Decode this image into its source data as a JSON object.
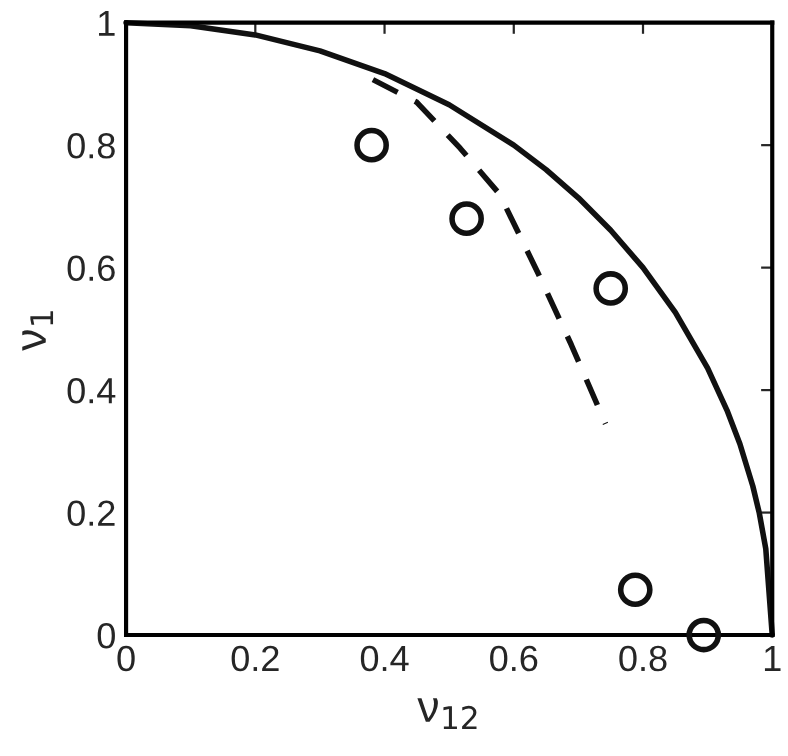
{
  "chart_data": {
    "type": "line",
    "xlabel": "ν$_{12}$",
    "ylabel": "ν$_{1}$",
    "xlim": [
      0,
      1
    ],
    "ylim": [
      0,
      1
    ],
    "xticks": [
      0,
      0.2,
      0.4,
      0.6,
      0.8,
      1
    ],
    "yticks": [
      0,
      0.2,
      0.4,
      0.6,
      0.8,
      1
    ],
    "grid": false,
    "legend": false,
    "series": [
      {
        "color": "#111111",
        "line_style": "solid",
        "marker": "none",
        "x": [
          0,
          0.1,
          0.2,
          0.3,
          0.4,
          0.5,
          0.6,
          0.65,
          0.7,
          0.75,
          0.8,
          0.85,
          0.9,
          0.93,
          0.95,
          0.97,
          0.98,
          0.99,
          1
        ],
        "values": [
          1,
          0.995,
          0.98,
          0.954,
          0.917,
          0.866,
          0.8,
          0.76,
          0.714,
          0.661,
          0.6,
          0.527,
          0.436,
          0.367,
          0.312,
          0.243,
          0.199,
          0.141,
          0
        ]
      },
      {
        "type": "line",
        "color": "#111111",
        "line_style": "dashed",
        "marker": "none",
        "x": [
          0.382,
          0.45,
          0.517,
          0.578,
          0.638,
          0.689,
          0.742
        ],
        "values": [
          0.907,
          0.87,
          0.795,
          0.72,
          0.59,
          0.474,
          0.345
        ]
      },
      {
        "type": "scatter",
        "color": "#111111",
        "marker": "circle",
        "x": [
          0.38,
          0.527,
          0.75,
          0.788,
          0.894
        ],
        "values": [
          0.8,
          0.68,
          0.566,
          0.074,
          0
        ]
      }
    ]
  }
}
